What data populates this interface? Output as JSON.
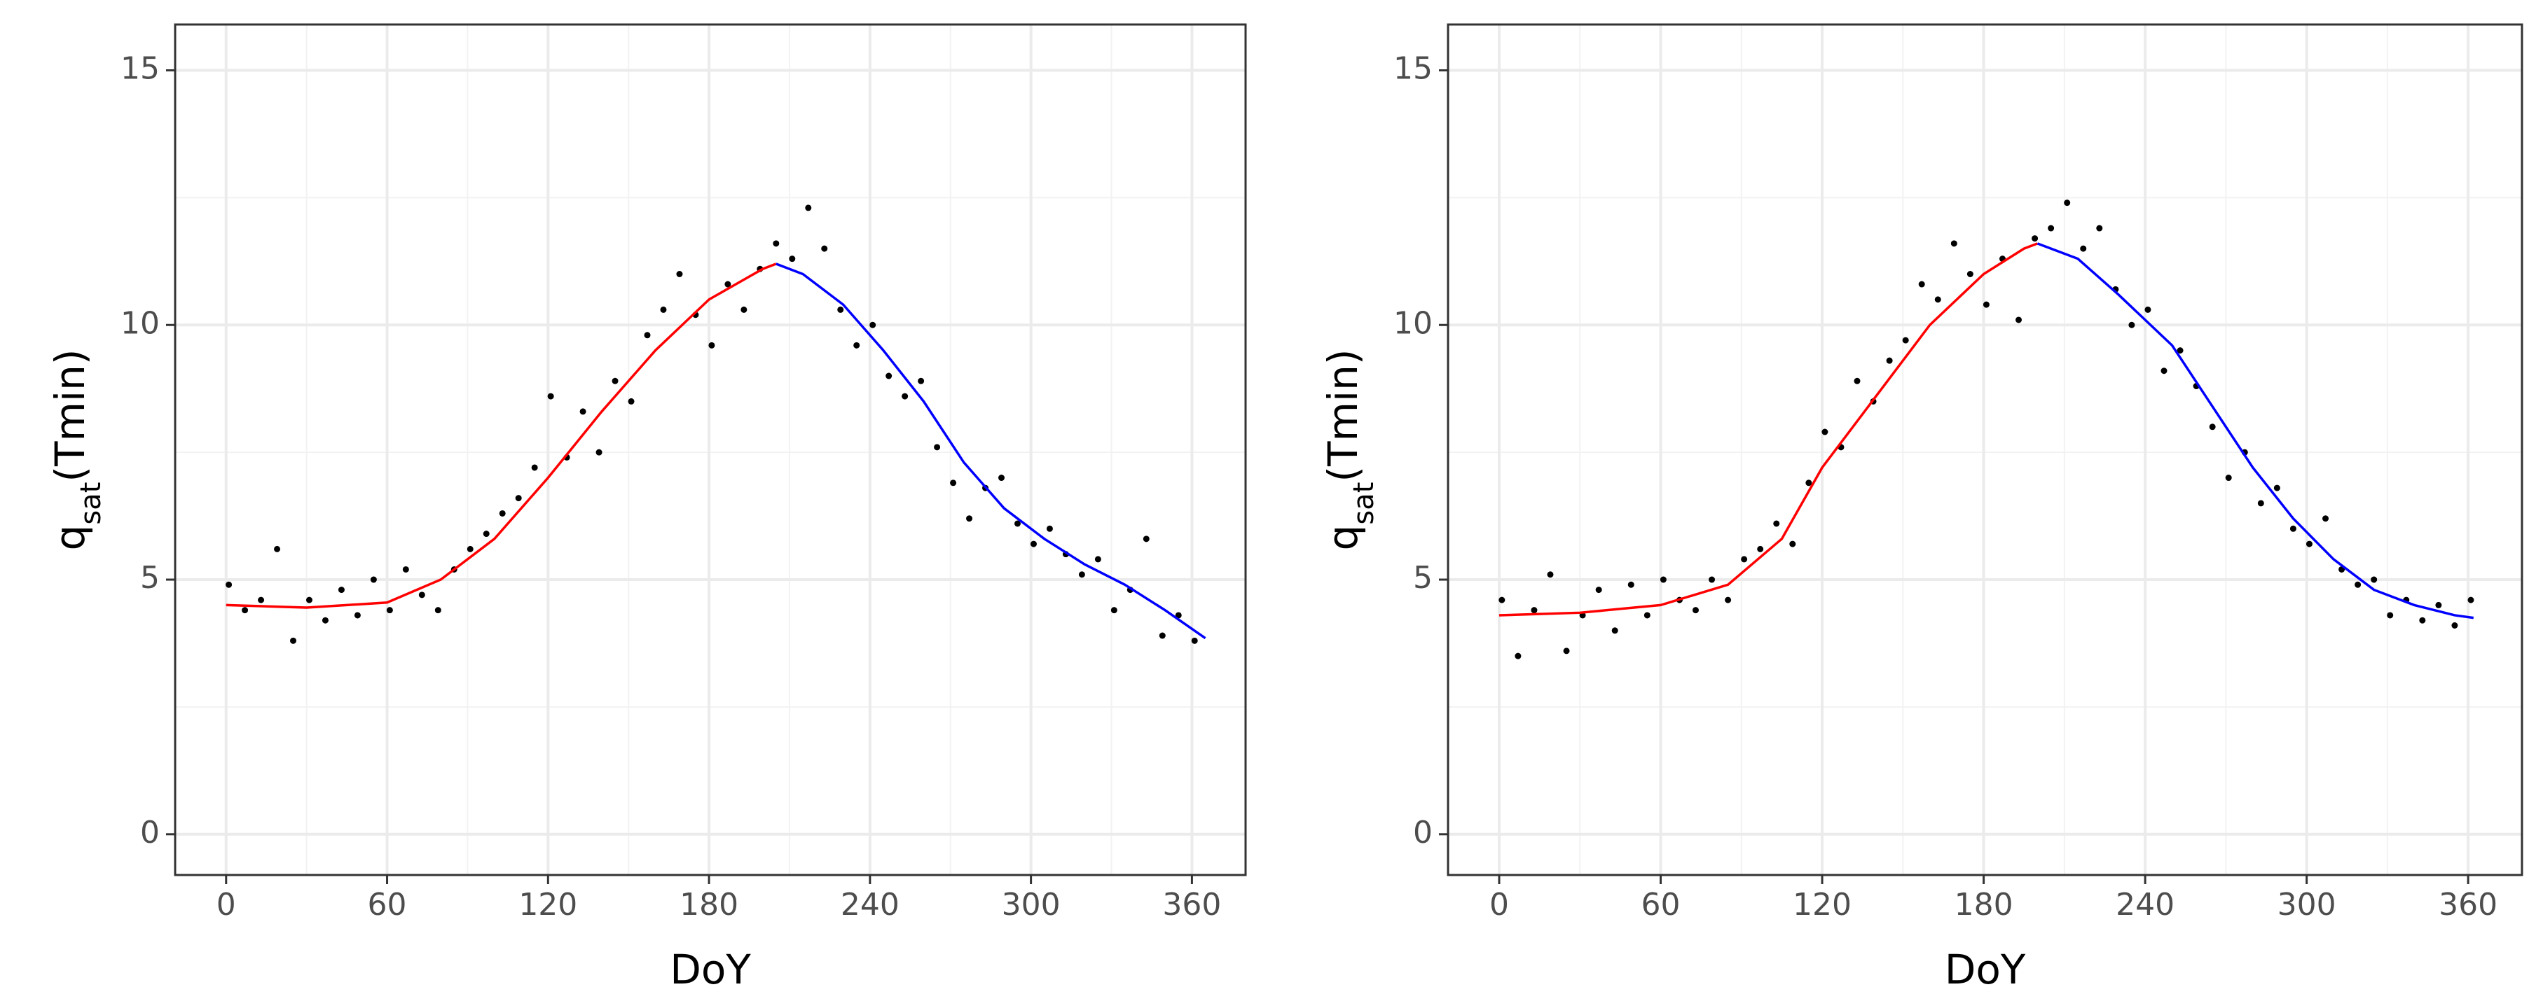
{
  "chart_data": [
    {
      "type": "scatter",
      "xlabel": "DoY",
      "ylabel": {
        "base": "q",
        "sub": "sat",
        "rest": "(Tmin)"
      },
      "xlim": [
        -19,
        380
      ],
      "ylim": [
        -0.8,
        15.9
      ],
      "xticks": [
        0,
        60,
        120,
        180,
        240,
        300,
        360
      ],
      "yticks": [
        0,
        5,
        10,
        15
      ],
      "xminor": [
        30,
        90,
        150,
        210,
        270,
        330
      ],
      "yminor": [
        2.5,
        7.5,
        12.5
      ],
      "grid": true,
      "series": [
        {
          "kind": "points",
          "color": "#000000",
          "x": [
            1,
            7,
            13,
            19,
            25,
            31,
            37,
            43,
            49,
            55,
            61,
            67,
            73,
            79,
            85,
            91,
            97,
            103,
            109,
            115,
            121,
            127,
            133,
            139,
            145,
            151,
            157,
            163,
            169,
            175,
            181,
            187,
            193,
            199,
            205,
            211,
            217,
            223,
            229,
            235,
            241,
            247,
            253,
            259,
            265,
            271,
            277,
            283,
            289,
            295,
            301,
            307,
            313,
            319,
            325,
            331,
            337,
            343,
            349,
            355,
            361
          ],
          "values": [
            4.9,
            4.4,
            4.6,
            5.6,
            3.8,
            4.6,
            4.2,
            4.8,
            4.3,
            5.0,
            4.4,
            5.2,
            4.7,
            4.4,
            5.2,
            5.6,
            5.9,
            6.3,
            6.6,
            7.2,
            8.6,
            7.4,
            8.3,
            7.5,
            8.9,
            8.5,
            9.8,
            10.3,
            11.0,
            10.2,
            9.6,
            10.8,
            10.3,
            11.1,
            11.6,
            11.3,
            12.3,
            11.5,
            10.3,
            9.6,
            10.0,
            9.0,
            8.6,
            8.9,
            7.6,
            6.9,
            6.2,
            6.8,
            7.0,
            6.1,
            5.7,
            6.0,
            5.5,
            5.1,
            5.4,
            4.4,
            4.8,
            5.8,
            3.9,
            4.3,
            3.8
          ]
        },
        {
          "kind": "line",
          "color": "#ff0000",
          "x": [
            0,
            30,
            60,
            80,
            100,
            120,
            140,
            160,
            180,
            200,
            205
          ],
          "values": [
            4.5,
            4.45,
            4.55,
            5.0,
            5.8,
            7.0,
            8.3,
            9.5,
            10.5,
            11.1,
            11.2
          ]
        },
        {
          "kind": "line",
          "color": "#0000ff",
          "x": [
            205,
            215,
            230,
            245,
            260,
            275,
            290,
            305,
            320,
            335,
            350,
            365
          ],
          "values": [
            11.2,
            11.0,
            10.4,
            9.5,
            8.5,
            7.3,
            6.4,
            5.8,
            5.3,
            4.9,
            4.4,
            3.85
          ]
        }
      ]
    },
    {
      "type": "scatter",
      "xlabel": "DoY",
      "ylabel": {
        "base": "q",
        "sub": "sat",
        "rest": "(Tmin)"
      },
      "xlim": [
        -19,
        380
      ],
      "ylim": [
        -0.8,
        15.9
      ],
      "xticks": [
        0,
        60,
        120,
        180,
        240,
        300,
        360
      ],
      "yticks": [
        0,
        5,
        10,
        15
      ],
      "xminor": [
        30,
        90,
        150,
        210,
        270,
        330
      ],
      "yminor": [
        2.5,
        7.5,
        12.5
      ],
      "grid": true,
      "series": [
        {
          "kind": "points",
          "color": "#000000",
          "x": [
            1,
            7,
            13,
            19,
            25,
            31,
            37,
            43,
            49,
            55,
            61,
            67,
            73,
            79,
            85,
            91,
            97,
            103,
            109,
            115,
            121,
            127,
            133,
            139,
            145,
            151,
            157,
            163,
            169,
            175,
            181,
            187,
            193,
            199,
            205,
            211,
            217,
            223,
            229,
            235,
            241,
            247,
            253,
            259,
            265,
            271,
            277,
            283,
            289,
            295,
            301,
            307,
            313,
            319,
            325,
            331,
            337,
            343,
            349,
            355,
            361
          ],
          "values": [
            4.6,
            3.5,
            4.4,
            5.1,
            3.6,
            4.3,
            4.8,
            4.0,
            4.9,
            4.3,
            5.0,
            4.6,
            4.4,
            5.0,
            4.6,
            5.4,
            5.6,
            6.1,
            5.7,
            6.9,
            7.9,
            7.6,
            8.9,
            8.5,
            9.3,
            9.7,
            10.8,
            10.5,
            11.6,
            11.0,
            10.4,
            11.3,
            10.1,
            11.7,
            11.9,
            12.4,
            11.5,
            11.9,
            10.7,
            10.0,
            10.3,
            9.1,
            9.5,
            8.8,
            8.0,
            7.0,
            7.5,
            6.5,
            6.8,
            6.0,
            5.7,
            6.2,
            5.2,
            4.9,
            5.0,
            4.3,
            4.6,
            4.2,
            4.5,
            4.1,
            4.6
          ]
        },
        {
          "kind": "line",
          "color": "#ff0000",
          "x": [
            0,
            30,
            60,
            85,
            105,
            120,
            140,
            160,
            180,
            195,
            200
          ],
          "values": [
            4.3,
            4.35,
            4.5,
            4.9,
            5.8,
            7.2,
            8.6,
            10.0,
            11.0,
            11.5,
            11.6
          ]
        },
        {
          "kind": "line",
          "color": "#0000ff",
          "x": [
            200,
            215,
            230,
            250,
            265,
            280,
            295,
            310,
            325,
            340,
            355,
            362
          ],
          "values": [
            11.6,
            11.3,
            10.6,
            9.6,
            8.4,
            7.2,
            6.2,
            5.4,
            4.8,
            4.5,
            4.3,
            4.25
          ]
        }
      ]
    }
  ]
}
